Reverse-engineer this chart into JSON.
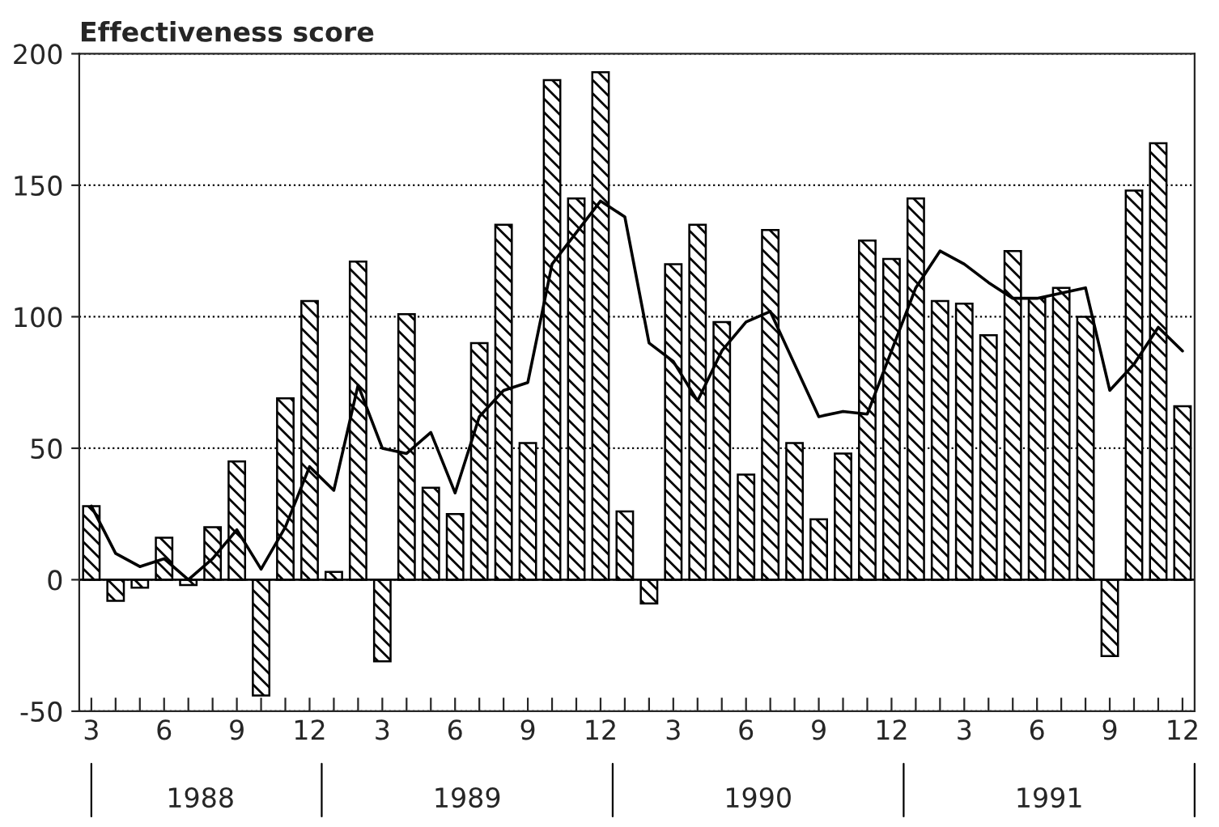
{
  "chart_data": {
    "type": "bar",
    "ylabel": "Effectiveness score",
    "categories": [
      "3",
      null,
      null,
      "6",
      null,
      null,
      "9",
      null,
      null,
      "12",
      null,
      null,
      "3",
      null,
      null,
      "6",
      null,
      null,
      "9",
      null,
      null,
      "12",
      null,
      null,
      "3",
      null,
      null,
      "6",
      null,
      null,
      "9",
      null,
      null,
      "12",
      null,
      null,
      "3",
      null,
      null,
      "6",
      null,
      null,
      "9",
      null,
      null,
      "12"
    ],
    "series": [
      {
        "color": "#000000",
        "values": [
          28,
          -8,
          -3,
          16,
          -2,
          20,
          45,
          -44,
          69,
          106,
          3,
          121,
          -31,
          101,
          35,
          25,
          90,
          135,
          52,
          190,
          145,
          193,
          26,
          -9,
          120,
          135,
          98,
          40,
          133,
          52,
          23,
          48,
          129,
          122,
          145,
          106,
          105,
          93,
          125,
          107,
          111,
          100,
          -29,
          148,
          166,
          66
        ]
      },
      {
        "type": "line",
        "color": "#000000",
        "values": [
          28,
          10,
          5,
          8,
          0,
          8,
          19,
          4,
          20,
          43,
          34,
          74,
          50,
          48,
          56,
          33,
          62,
          72,
          75,
          120,
          132,
          144,
          138,
          90,
          83,
          68,
          87,
          98,
          102,
          82,
          62,
          64,
          63,
          87,
          111,
          125,
          120,
          113,
          107,
          107,
          109,
          111,
          72,
          82,
          96,
          87
        ]
      }
    ],
    "annotations": [
      "1988",
      "1989",
      "1990",
      "1991"
    ],
    "ylim": [
      -50,
      200
    ],
    "yticks": [
      -50,
      0,
      50,
      100,
      150,
      200
    ],
    "grid": "y",
    "legend": false
  }
}
